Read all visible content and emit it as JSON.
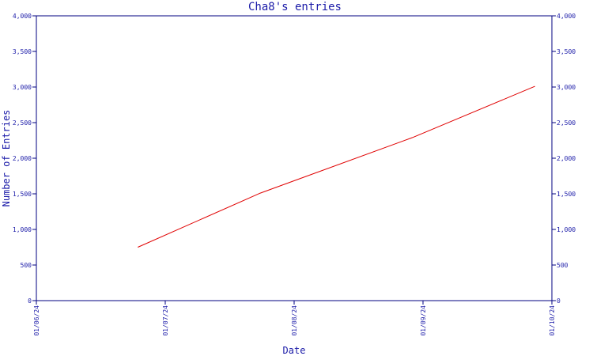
{
  "chart_data": {
    "type": "line",
    "title": "Cha8's entries",
    "xlabel": "Date",
    "ylabel": "Number of Entries",
    "x_ticks": [
      "01/06/24",
      "01/07/24",
      "01/08/24",
      "01/09/24",
      "01/10/24"
    ],
    "xlim": [
      "2024-06-01",
      "2024-10-01"
    ],
    "ylim": [
      0,
      4000
    ],
    "y_ticks": [
      0,
      500,
      1000,
      1500,
      2000,
      2500,
      3000,
      3500,
      4000
    ],
    "y_tick_labels": [
      "0",
      "500",
      "1,000",
      "1,500",
      "2,000",
      "2,500",
      "3,000",
      "3,500",
      "4,000"
    ],
    "y_axis_right": true,
    "grid": false,
    "series": [
      {
        "x": [
          "2024-06-25",
          "2024-07-24",
          "2024-08-29",
          "2024-09-27"
        ],
        "y": [
          750,
          1510,
          2290,
          3010
        ]
      }
    ]
  },
  "colors": {
    "axis": "#000080",
    "text": "#1a1aa8",
    "line": "#e00000"
  }
}
